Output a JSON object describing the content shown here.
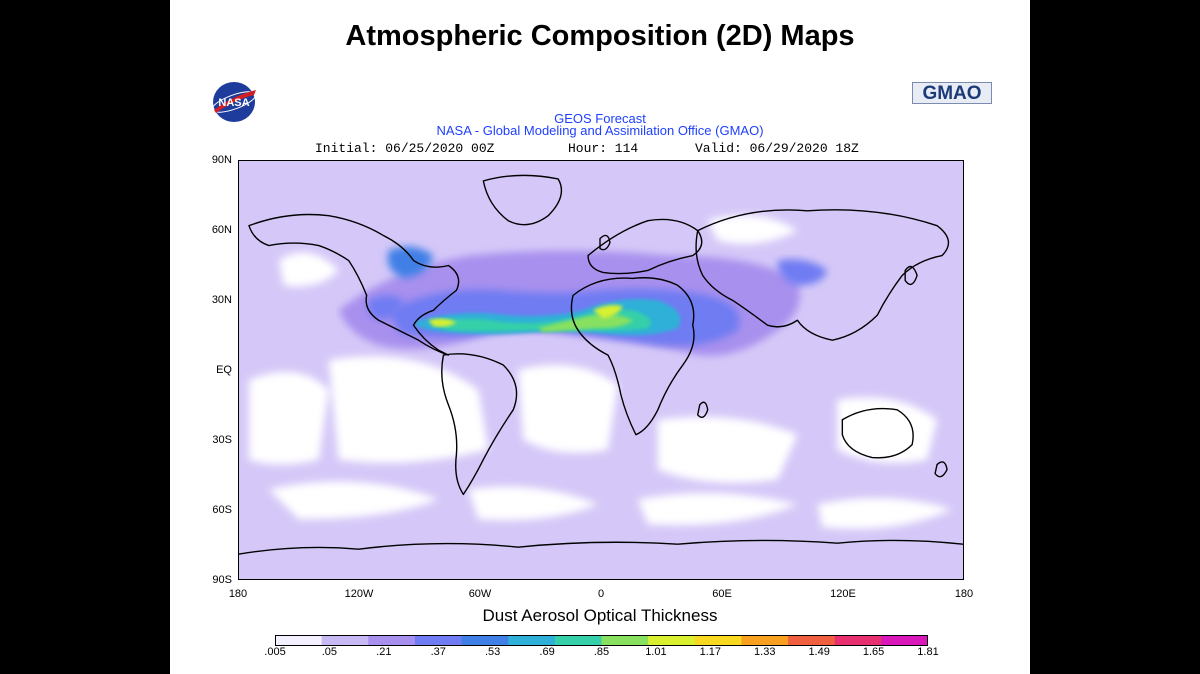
{
  "slide": {
    "title": "Atmospheric Composition (2D) Maps"
  },
  "logos": {
    "nasa": "NASA",
    "gmao": "GMAO"
  },
  "map_header": {
    "title": "GEOS Forecast",
    "subtitle": "NASA - Global Modeling and Assimilation Office (GMAO)",
    "initial": "Initial: 06/25/2020 00Z",
    "hour": "Hour: 114",
    "valid": "Valid: 06/29/2020 18Z"
  },
  "axes": {
    "lat_labels": [
      "90N",
      "60N",
      "30N",
      "EQ",
      "30S",
      "60S",
      "90S"
    ],
    "lon_labels": [
      "180",
      "120W",
      "60W",
      "0",
      "60E",
      "120E",
      "180"
    ]
  },
  "variable_label": "Dust Aerosol Optical Thickness",
  "colorbar": {
    "labels": [
      ".005",
      ".05",
      ".21",
      ".37",
      ".53",
      ".69",
      ".85",
      "1.01",
      "1.17",
      "1.33",
      "1.49",
      "1.65",
      "1.81"
    ],
    "colors": [
      "#f4f0ff",
      "#c8b8f4",
      "#a890ee",
      "#6f7cf2",
      "#3f7fe6",
      "#2fb0d8",
      "#35d0a8",
      "#88e060",
      "#d8f030",
      "#f8d820",
      "#f8a020",
      "#f06040",
      "#e83070",
      "#d818b8"
    ]
  },
  "map_colors": {
    "ocean_base": "#d5c8f8",
    "clean_air": "#ffffff",
    "land_line": "#000000"
  }
}
